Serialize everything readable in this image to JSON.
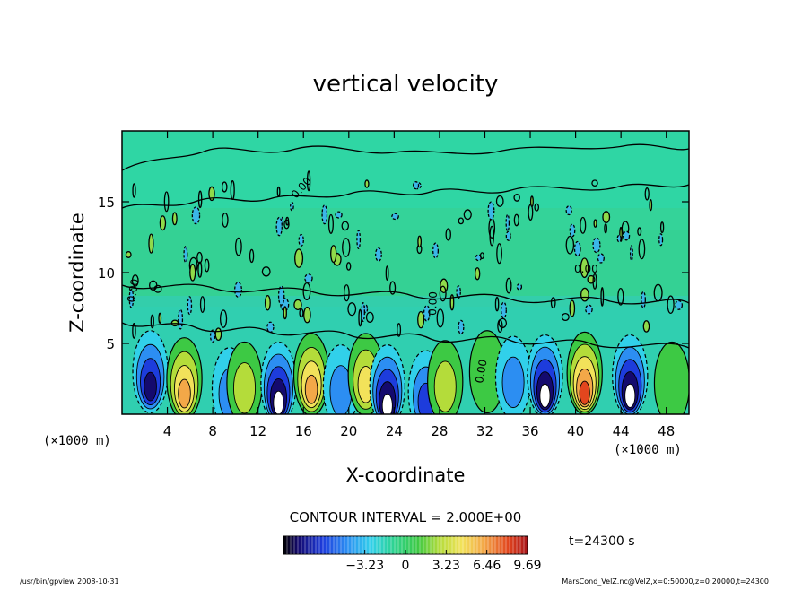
{
  "chart_data": {
    "type": "heatmap",
    "title": "vertical velocity",
    "xlabel": "X-coordinate",
    "ylabel": "Z-coordinate",
    "x_unit": "(×1000 m)",
    "y_unit": "(×1000 m)",
    "xlim": [
      0,
      50
    ],
    "ylim": [
      0,
      20
    ],
    "x_ticks": [
      4,
      8,
      12,
      16,
      20,
      24,
      28,
      32,
      36,
      40,
      44,
      48
    ],
    "y_ticks": [
      5,
      10,
      15
    ],
    "contour_interval_text": "CONTOUR INTERVAL = 2.000E+00",
    "contour_labels": [
      "0.00",
      "0.00",
      "0.00",
      "0.00",
      "0.00"
    ],
    "time_label": "t=24300 s",
    "colorbar": {
      "min": -9.69,
      "max": 9.69,
      "ticks": [
        -3.23,
        0,
        3.23,
        6.46,
        9.69
      ],
      "tick_labels": [
        "−3.23",
        "0",
        "3.23",
        "6.46",
        "9.69"
      ]
    },
    "cells": [
      {
        "x": 2.5,
        "z": 3.0,
        "w": -8.0
      },
      {
        "x": 5.5,
        "z": 2.5,
        "w": 8.0
      },
      {
        "x": 9.5,
        "z": 1.8,
        "w": -3.5
      },
      {
        "x": 10.8,
        "z": 2.2,
        "w": 3.0
      },
      {
        "x": 13.8,
        "z": 2.2,
        "w": -10.0
      },
      {
        "x": 16.7,
        "z": 2.8,
        "w": 8.5
      },
      {
        "x": 19.3,
        "z": 2.0,
        "w": -3.0
      },
      {
        "x": 21.5,
        "z": 2.8,
        "w": 6.0
      },
      {
        "x": 23.4,
        "z": 2.0,
        "w": -9.0
      },
      {
        "x": 26.8,
        "z": 1.6,
        "w": -5.0
      },
      {
        "x": 28.5,
        "z": 2.3,
        "w": 3.5
      },
      {
        "x": 32.2,
        "z": 3.0,
        "w": 2.5
      },
      {
        "x": 34.5,
        "z": 2.6,
        "w": -3.0
      },
      {
        "x": 37.3,
        "z": 2.7,
        "w": -10.0
      },
      {
        "x": 40.8,
        "z": 2.9,
        "w": 9.5
      },
      {
        "x": 44.8,
        "z": 2.7,
        "w": -9.5
      },
      {
        "x": 48.5,
        "z": 2.2,
        "w": 2.0
      }
    ]
  },
  "footer": {
    "left": "/usr/bin/gpview   2008-10-31",
    "right": "MarsCond_VelZ.nc@VelZ,x=0:50000,z=0:20000,t=24300"
  }
}
